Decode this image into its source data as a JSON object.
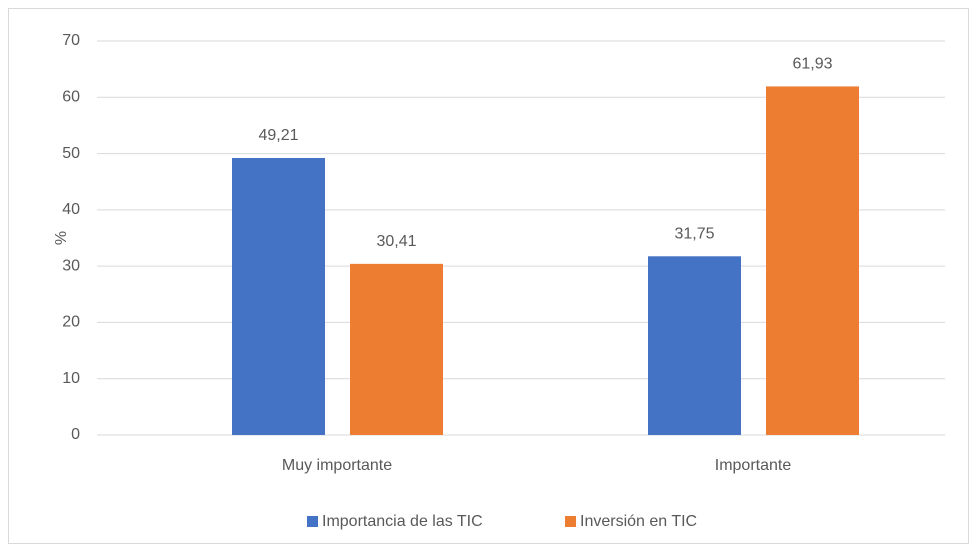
{
  "chart_data": {
    "type": "bar",
    "categories": [
      "Muy importante",
      "Importante"
    ],
    "series": [
      {
        "name": "Importancia de las TIC",
        "color": "#4472c4",
        "values": [
          49.21,
          31.75
        ],
        "value_labels": [
          "49,21",
          "31,75"
        ]
      },
      {
        "name": "Inversión en TIC",
        "color": "#ed7d31",
        "values": [
          30.41,
          61.93
        ],
        "value_labels": [
          "30,41",
          "61,93"
        ]
      }
    ],
    "ylabel": "%",
    "ylim": [
      0,
      70
    ],
    "yticks": [
      0,
      10,
      20,
      30,
      40,
      50,
      60,
      70
    ],
    "grid": true,
    "legend": "bottom"
  }
}
